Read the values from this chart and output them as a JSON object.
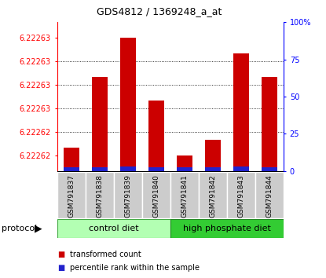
{
  "title": "GDS4812 / 1369248_a_at",
  "samples": [
    "GSM791837",
    "GSM791838",
    "GSM791839",
    "GSM791840",
    "GSM791841",
    "GSM791842",
    "GSM791843",
    "GSM791844"
  ],
  "red_values": [
    6.222621,
    6.22263,
    6.222635,
    6.222627,
    6.22262,
    6.222622,
    6.222633,
    6.22263
  ],
  "blue_percentiles": [
    2.5,
    2.5,
    3.0,
    2.5,
    2.5,
    2.5,
    3.0,
    2.5
  ],
  "y_min": 6.222618,
  "y_max": 6.222637,
  "ytick_vals": [
    6.22262,
    6.222623,
    6.222626,
    6.222629,
    6.222632,
    6.222635
  ],
  "ytick_labels": [
    "6.22262",
    "6.22262",
    "6.22263",
    "6.22263",
    "6.22263",
    "6.22263"
  ],
  "yticks_right": [
    0,
    25,
    50,
    75,
    100
  ],
  "ctrl_color": "#b3ffb3",
  "hp_color": "#33cc33",
  "bar_color_red": "#cc0000",
  "bar_color_blue": "#2222cc",
  "bar_width": 0.55,
  "background_color": "#ffffff",
  "sample_box_color": "#cccccc",
  "legend_red_label": "transformed count",
  "legend_blue_label": "percentile rank within the sample",
  "protocol_label": "protocol"
}
